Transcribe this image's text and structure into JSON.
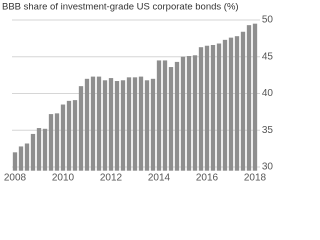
{
  "chart_data": {
    "type": "bar",
    "title": "BBB share of investment-grade US corporate bonds (%)",
    "categories": [
      "2008",
      null,
      null,
      null,
      null,
      null,
      null,
      null,
      "2010",
      null,
      null,
      null,
      null,
      null,
      null,
      null,
      "2012",
      null,
      null,
      null,
      null,
      null,
      null,
      null,
      "2014",
      null,
      null,
      null,
      null,
      null,
      null,
      null,
      "2016",
      null,
      null,
      null,
      null,
      null,
      null,
      null,
      "2018"
    ],
    "values": [
      32,
      32.8,
      33.2,
      34.5,
      35.3,
      35.2,
      37.2,
      37.3,
      38.5,
      39,
      39.1,
      41,
      42,
      42.3,
      42.3,
      41.8,
      42.1,
      41.7,
      41.8,
      42.2,
      42.2,
      42.3,
      41.8,
      42,
      44.5,
      44.5,
      43.6,
      44.3,
      45,
      45.1,
      45.2,
      46.3,
      46.5,
      46.6,
      46.8,
      47.3,
      47.6,
      47.8,
      48.4,
      49.3,
      49.5
    ],
    "color": "#8e8e8e",
    "ylim": [
      29.5,
      51
    ],
    "yticks": [
      30,
      35,
      40,
      45,
      50
    ],
    "grid": true
  }
}
